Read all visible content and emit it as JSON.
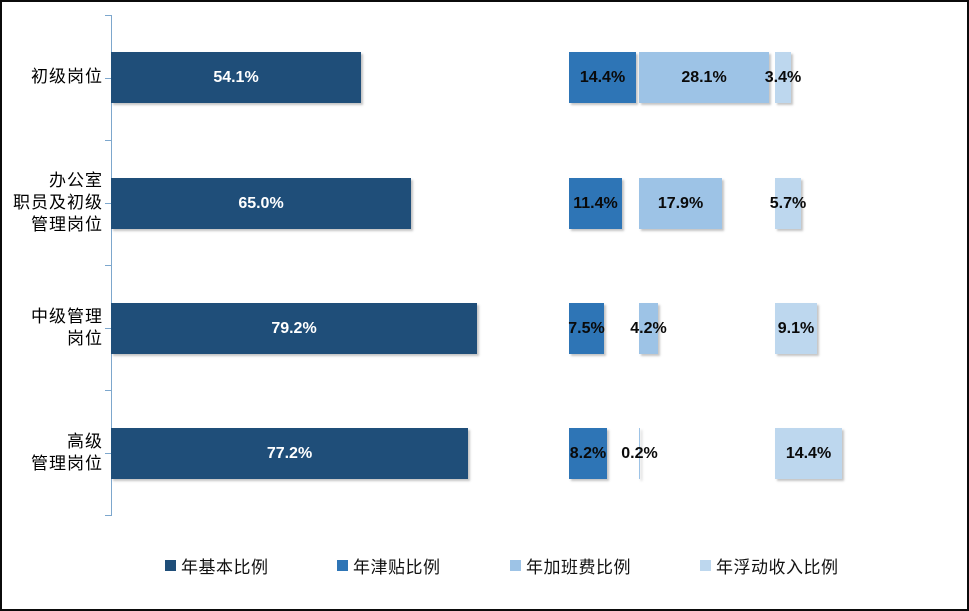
{
  "chart_data": {
    "type": "bar",
    "orientation": "horizontal",
    "title": "",
    "xlabel": "",
    "ylabel": "",
    "unit": "%",
    "grid": false,
    "legend_position": "bottom",
    "axis_color": "#7da7cd",
    "categories": [
      "初级岗位",
      "办公室职员及初级管理岗位",
      "中级管理岗位",
      "高级管理岗位"
    ],
    "category_lines": [
      [
        "初级岗位"
      ],
      [
        "办公室",
        "职员及初级",
        "管理岗位"
      ],
      [
        "中级管理",
        "岗位"
      ],
      [
        "高级",
        "管理岗位"
      ]
    ],
    "series": [
      {
        "name": "年基本比例",
        "color": "#1F4E79",
        "label_color": "#FFFFFF",
        "values": [
          54.1,
          65.0,
          79.2,
          77.2
        ],
        "labels": [
          "54.1%",
          "65.0%",
          "79.2%",
          "77.2%"
        ]
      },
      {
        "name": "年津贴比例",
        "color": "#2E75B6",
        "label_color": "#0a0a0a",
        "values": [
          14.4,
          11.4,
          7.5,
          8.2
        ],
        "labels": [
          "14.4%",
          "11.4%",
          "7.5%",
          "8.2%"
        ]
      },
      {
        "name": "年加班费比例",
        "color": "#9DC3E6",
        "label_color": "#0a0a0a",
        "values": [
          28.1,
          17.9,
          4.2,
          0.2
        ],
        "labels": [
          "28.1%",
          "17.9%",
          "4.2%",
          "0.2%"
        ]
      },
      {
        "name": "年浮动收入比例",
        "color": "#BDD7EE",
        "label_color": "#0a0a0a",
        "values": [
          3.4,
          5.7,
          9.1,
          14.4
        ],
        "labels": [
          "3.4%",
          "5.7%",
          "9.1%",
          "14.4%"
        ]
      }
    ]
  }
}
